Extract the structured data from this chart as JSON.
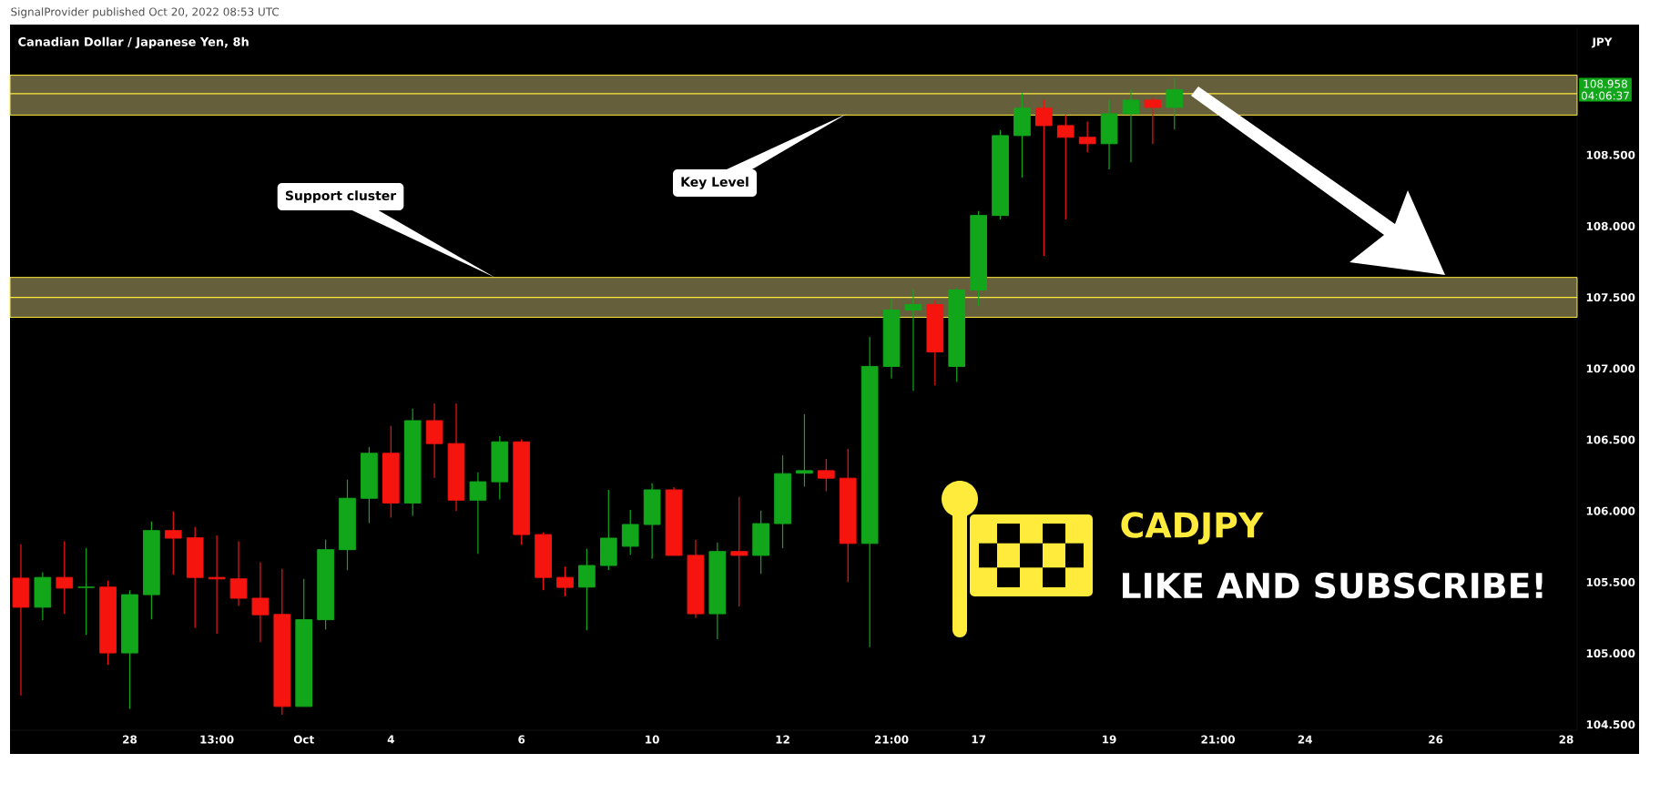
{
  "chart_data": {
    "type": "candlestick",
    "title": "Canadian Dollar / Japanese Yen, 8h",
    "ylabel": "JPY",
    "categories": [
      null,
      null,
      null,
      null,
      null,
      "28",
      null,
      null,
      null,
      "13:00",
      null,
      null,
      null,
      "Oct",
      null,
      null,
      null,
      "4",
      null,
      null,
      null,
      null,
      null,
      "6",
      null,
      null,
      null,
      null,
      null,
      "10",
      null,
      null,
      null,
      null,
      null,
      "12",
      null,
      null,
      null,
      null,
      "21:00",
      null,
      null,
      null,
      "17",
      null,
      null,
      null,
      null,
      null,
      "19",
      null,
      null,
      null,
      null,
      "21:00",
      null,
      null,
      null,
      "24",
      null,
      null,
      null,
      null,
      null,
      "26",
      null,
      null,
      null,
      null,
      null,
      "28"
    ],
    "ohlc": [
      [
        105.528,
        105.766,
        104.705,
        105.324
      ],
      [
        105.324,
        105.569,
        105.233,
        105.533
      ],
      [
        105.533,
        105.786,
        105.276,
        105.458
      ],
      [
        105.463,
        105.74,
        105.13,
        105.465
      ],
      [
        105.465,
        105.511,
        104.92,
        105.003
      ],
      [
        105.003,
        105.443,
        104.61,
        105.412
      ],
      [
        105.412,
        105.925,
        105.238,
        105.862
      ],
      [
        105.862,
        105.996,
        105.551,
        105.809
      ],
      [
        105.811,
        105.887,
        105.18,
        105.533
      ],
      [
        105.533,
        105.829,
        105.137,
        105.523
      ],
      [
        105.523,
        105.786,
        105.334,
        105.387
      ],
      [
        105.387,
        105.64,
        105.079,
        105.271
      ],
      [
        105.273,
        105.594,
        104.569,
        104.627
      ],
      [
        104.627,
        105.523,
        104.627,
        105.236
      ],
      [
        105.236,
        105.799,
        105.167,
        105.728
      ],
      [
        105.728,
        106.22,
        105.584,
        106.089
      ],
      [
        106.089,
        106.448,
        105.915,
        106.405
      ],
      [
        106.405,
        106.597,
        105.953,
        106.056
      ],
      [
        106.056,
        106.718,
        105.965,
        106.634
      ],
      [
        106.634,
        106.756,
        106.233,
        106.473
      ],
      [
        106.473,
        106.756,
        106.0,
        106.076
      ],
      [
        106.076,
        106.271,
        105.698,
        106.205
      ],
      [
        106.205,
        106.526,
        106.081,
        106.485
      ],
      [
        106.485,
        106.503,
        105.761,
        105.834
      ],
      [
        105.834,
        105.849,
        105.443,
        105.533
      ],
      [
        105.533,
        105.609,
        105.4,
        105.463
      ],
      [
        105.465,
        105.734,
        105.162,
        105.617
      ],
      [
        105.617,
        106.148,
        105.586,
        105.809
      ],
      [
        105.752,
        106.007,
        105.693,
        105.905
      ],
      [
        105.905,
        106.194,
        105.665,
        106.148
      ],
      [
        106.148,
        106.167,
        105.688,
        105.688
      ],
      [
        105.688,
        105.797,
        105.248,
        105.278
      ],
      [
        105.278,
        105.779,
        105.1,
        105.715
      ],
      [
        105.715,
        106.098,
        105.33,
        105.688
      ],
      [
        105.688,
        106.003,
        105.558,
        105.911
      ],
      [
        105.911,
        106.39,
        105.738,
        106.262
      ],
      [
        106.265,
        106.68,
        106.171,
        106.283
      ],
      [
        106.283,
        106.365,
        106.139,
        106.23
      ],
      [
        106.23,
        106.436,
        105.501,
        105.772
      ],
      [
        105.772,
        107.222,
        105.043,
        107.015
      ],
      [
        107.015,
        107.49,
        106.93,
        107.411
      ],
      [
        107.411,
        107.554,
        106.843,
        107.449
      ],
      [
        107.449,
        107.481,
        106.881,
        107.117
      ],
      [
        107.015,
        107.564,
        106.905,
        107.551
      ],
      [
        107.551,
        108.107,
        107.441,
        108.075
      ],
      [
        108.075,
        108.675,
        108.047,
        108.636
      ],
      [
        108.636,
        108.934,
        108.341,
        108.828
      ],
      [
        108.828,
        108.887,
        107.792,
        108.706
      ],
      [
        108.706,
        108.781,
        108.047,
        108.624
      ],
      [
        108.624,
        108.734,
        108.519,
        108.579
      ],
      [
        108.579,
        108.887,
        108.398,
        108.789
      ],
      [
        108.789,
        108.96,
        108.449,
        108.885
      ],
      [
        108.885,
        108.906,
        108.577,
        108.834
      ],
      [
        108.834,
        109.04,
        108.679,
        108.958
      ],
      null,
      null,
      null,
      null,
      null,
      null,
      null,
      null,
      null,
      null,
      null,
      null,
      null,
      null,
      null,
      null,
      null,
      null
    ],
    "colors": [
      "#f5140e",
      "#12a71b",
      "#f5140e",
      "#12a71b",
      "#f5140e",
      "#12a71b",
      "#12a71b",
      "#f5140e",
      "#f5140e",
      "#f5140e",
      "#f5140e",
      "#f5140e",
      "#f5140e",
      "#12a71b",
      "#12a71b",
      "#12a71b",
      "#12a71b",
      "#f5140e",
      "#12a71b",
      "#f5140e",
      "#f5140e",
      "#12a71b",
      "#12a71b",
      "#f5140e",
      "#f5140e",
      "#f5140e",
      "#12a71b",
      "#12a71b",
      "#12a71b",
      "#12a71b",
      "#f5140e",
      "#f5140e",
      "#12a71b",
      "#f5140e",
      "#12a71b",
      "#12a71b",
      "#12a71b",
      "#f5140e",
      "#f5140e",
      "#12a71b",
      "#12a71b",
      "#12a71b",
      "#f5140e",
      "#12a71b",
      "#12a71b",
      "#12a71b",
      "#12a71b",
      "#f5140e",
      "#f5140e",
      "#f5140e",
      "#12a71b",
      "#12a71b",
      "#f5140e",
      "#12a71b",
      null,
      null,
      null,
      null,
      null,
      null,
      null,
      null,
      null,
      null,
      null,
      null,
      null,
      null,
      null,
      null,
      null,
      null
    ],
    "ylim": [
      104.46,
      109.39
    ],
    "yticks": [
      {
        "value": 104.5,
        "label": "104.500"
      },
      {
        "value": 105.0,
        "label": "105.000"
      },
      {
        "value": 105.5,
        "label": "105.500"
      },
      {
        "value": 106.0,
        "label": "106.000"
      },
      {
        "value": 106.5,
        "label": "106.500"
      },
      {
        "value": 107.0,
        "label": "107.000"
      },
      {
        "value": 107.5,
        "label": "107.500"
      },
      {
        "value": 108.0,
        "label": "108.000"
      },
      {
        "value": 108.5,
        "label": "108.500"
      }
    ],
    "bands": [
      {
        "axis": "y",
        "from": 108.78,
        "to": 109.06,
        "color": "#665f3c"
      },
      {
        "axis": "y",
        "from": 107.36,
        "to": 107.64,
        "color": "#665f3c"
      }
    ],
    "ref_lines": [
      {
        "axis": "y",
        "value": 108.93,
        "color": "#ffeb3b"
      },
      {
        "axis": "y",
        "value": 107.5,
        "color": "#ffeb3b"
      }
    ],
    "annotations": [
      "SignalProvider published Oct 20, 2022 08:53 UTC",
      "Key Level",
      "Support cluster",
      "CADJPY",
      "LIKE AND SUBSCRIBE!",
      "108.958",
      "04:06:37"
    ],
    "grid": false
  }
}
